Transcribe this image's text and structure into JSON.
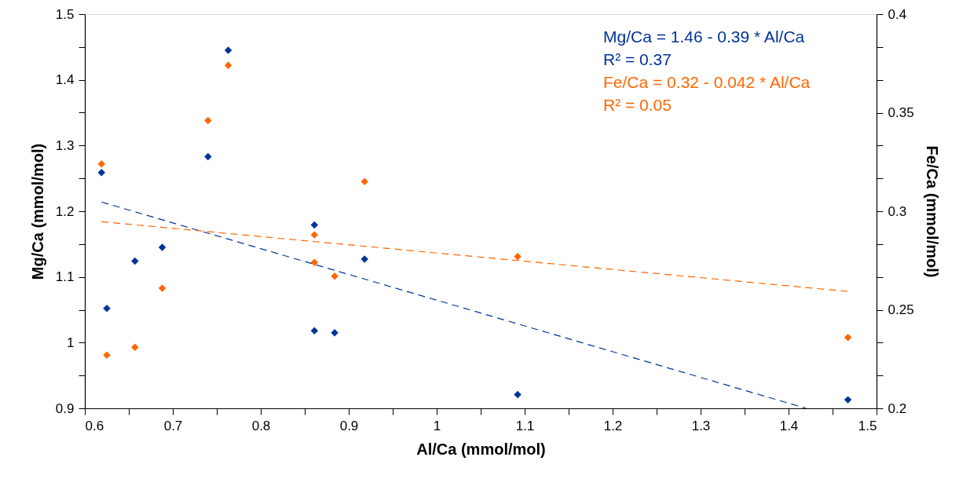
{
  "chart_data": {
    "type": "scatter",
    "xlabel": "Al/Ca (mmol/mol)",
    "ylabel": "Mg/Ca (mmol/mol)",
    "y2label": "Fe/Ca (mmol/mol)",
    "xlim": [
      0.6,
      1.5
    ],
    "ylim": [
      0.9,
      1.5
    ],
    "y2lim": [
      0.2,
      0.4
    ],
    "xticks": [
      0.6,
      {
        "value": 0.65,
        "label": null
      },
      0.7,
      {
        "value": 0.75,
        "label": null
      },
      0.8,
      {
        "value": 0.85,
        "label": null
      },
      0.9,
      {
        "value": 0.95,
        "label": null
      },
      1,
      {
        "value": 1.05,
        "label": null
      },
      1.1,
      {
        "value": 1.15,
        "label": null
      },
      1.2,
      {
        "value": 1.25,
        "label": null
      },
      1.3,
      {
        "value": 1.35,
        "label": null
      },
      1.4,
      {
        "value": 1.45,
        "label": null
      },
      1.5
    ],
    "yticks": [
      0.9,
      {
        "value": 0.95,
        "label": null
      },
      1,
      {
        "value": 1.05,
        "label": null
      },
      1.1,
      {
        "value": 1.15,
        "label": null
      },
      1.2,
      {
        "value": 1.25,
        "label": null
      },
      1.3,
      {
        "value": 1.35,
        "label": null
      },
      1.4,
      {
        "value": 1.45,
        "label": null
      },
      1.5
    ],
    "y2ticks": [
      0.2,
      {
        "value": 0.2167,
        "label": null
      },
      {
        "value": 0.2333,
        "label": null
      },
      0.25,
      {
        "value": 0.2667,
        "label": null
      },
      {
        "value": 0.2833,
        "label": null
      },
      0.3,
      {
        "value": 0.3167,
        "label": null
      },
      {
        "value": 0.3333,
        "label": null
      },
      0.35,
      {
        "value": 0.3667,
        "label": null
      },
      {
        "value": 0.3833,
        "label": null
      },
      0.4
    ],
    "grid": false,
    "marker": "diamond",
    "series": [
      {
        "color": "#003399",
        "x": [
          0.619,
          0.625,
          0.657,
          0.688,
          0.74,
          0.763,
          0.861,
          0.861,
          0.884,
          0.918,
          1.092,
          1.4675
        ],
        "values": [
          1.259,
          1.052,
          1.124,
          1.145,
          1.283,
          1.445,
          1.179,
          1.018,
          1.015,
          1.127,
          0.921,
          0.913
        ]
      },
      {
        "color": "#ff6600",
        "axis": "y2",
        "x": [
          0.619,
          0.625,
          0.657,
          0.688,
          0.74,
          0.763,
          0.861,
          0.861,
          0.884,
          0.918,
          1.092,
          1.4675
        ],
        "values": [
          0.324,
          0.227,
          0.231,
          0.261,
          0.346,
          0.374,
          0.288,
          0.274,
          0.267,
          0.315,
          0.277,
          0.236
        ]
      },
      {
        "type": "line",
        "color": "#003399",
        "line_style": "dashed",
        "marker": "none",
        "x": [
          0.619,
          1.42
        ],
        "values": [
          1.214,
          0.9
        ]
      },
      {
        "type": "line",
        "color": "#ff6600",
        "line_style": "dashed",
        "marker": "none",
        "axis": "y2",
        "x": [
          0.619,
          1.4675
        ],
        "values": [
          0.2947,
          0.2593
        ]
      }
    ],
    "annotations": [
      "Mg/Ca = 1.46 - 0.39 * Al/Ca",
      "R² = 0.37",
      "Fe/Ca = 0.32 - 0.042 * Al/Ca",
      "R² = 0.05"
    ]
  }
}
